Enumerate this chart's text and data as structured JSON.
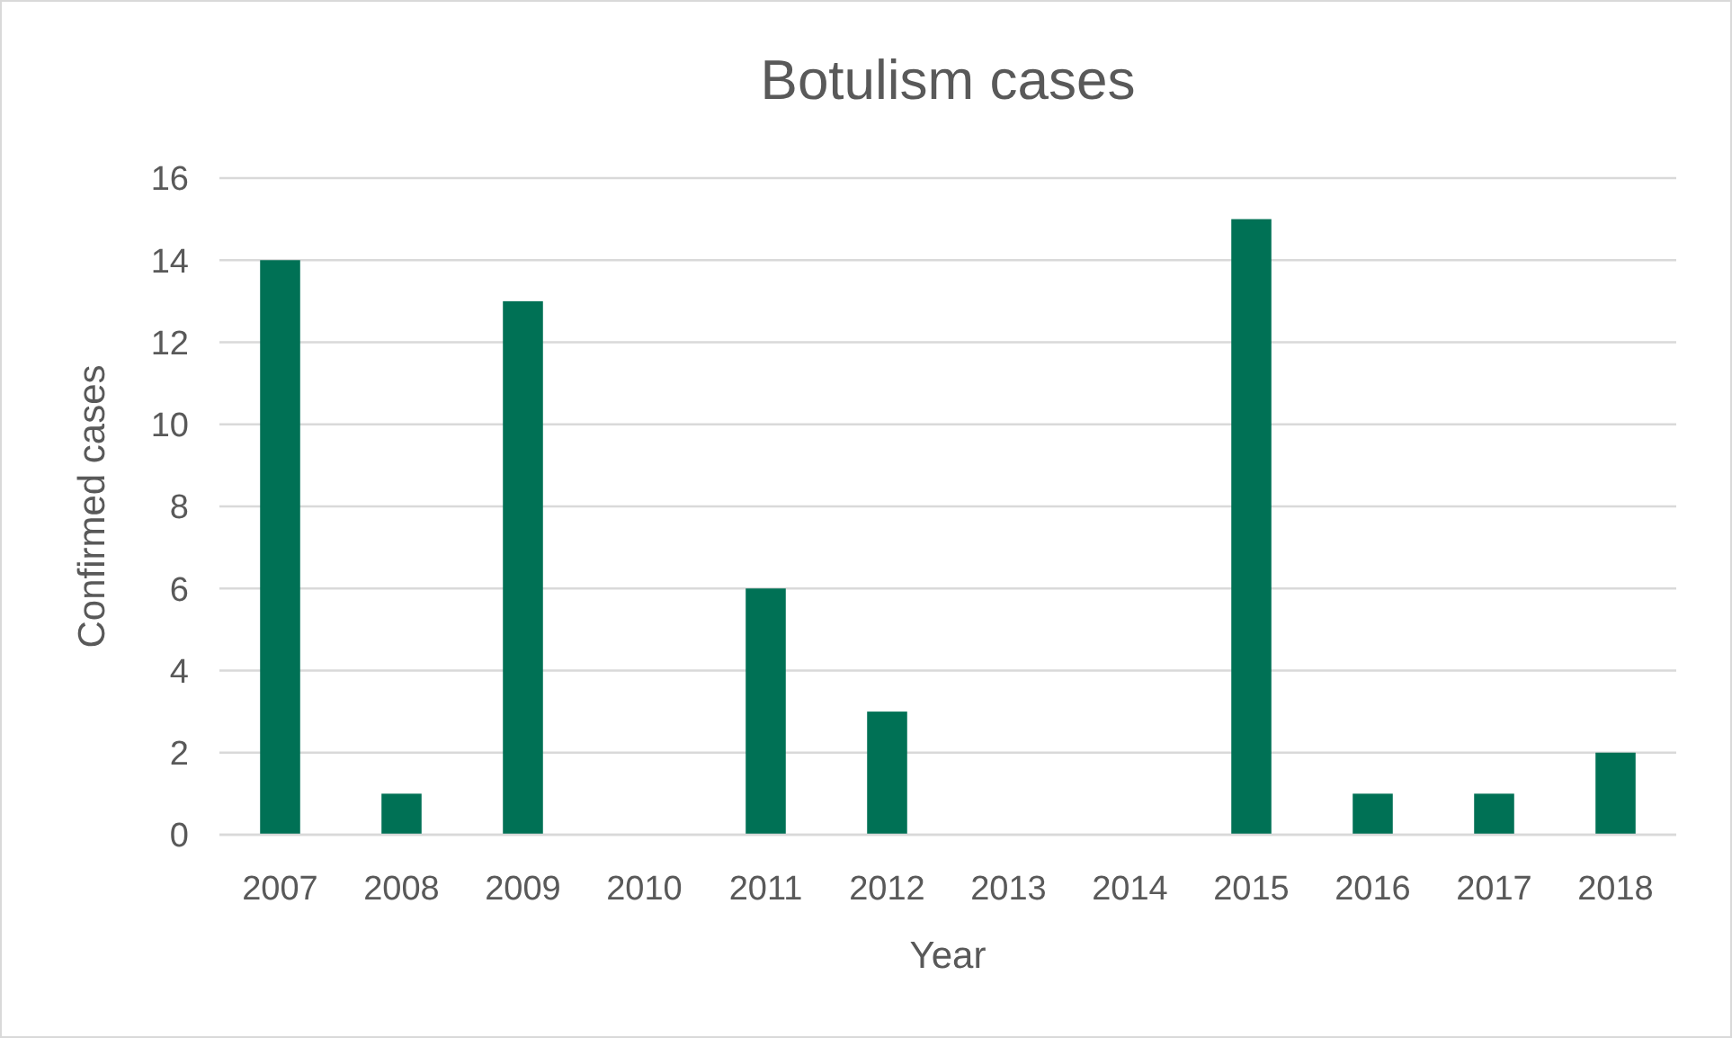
{
  "chart_data": {
    "type": "bar",
    "title": "Botulism cases",
    "xlabel": "Year",
    "ylabel": "Confirmed cases",
    "categories": [
      "2007",
      "2008",
      "2009",
      "2010",
      "2011",
      "2012",
      "2013",
      "2014",
      "2015",
      "2016",
      "2017",
      "2018"
    ],
    "values": [
      14,
      1,
      13,
      0,
      6,
      3,
      0,
      0,
      15,
      1,
      1,
      2
    ],
    "color": "#007155",
    "ylim": [
      0,
      16
    ],
    "yticks": [
      0,
      2,
      4,
      6,
      8,
      10,
      12,
      14,
      16
    ],
    "grid": "y"
  }
}
